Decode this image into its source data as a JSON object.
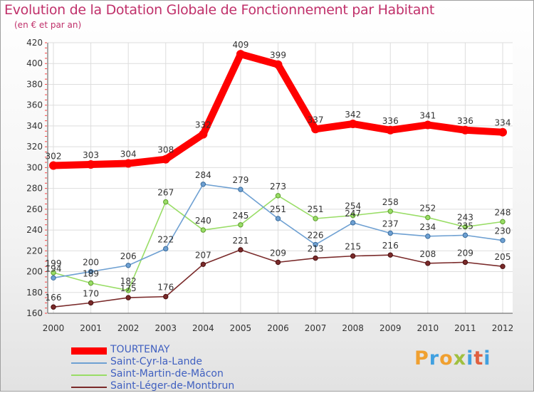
{
  "chart_data": {
    "type": "line",
    "title": "Evolution de la Dotation Globale de Fonctionnement par Habitant",
    "subtitle": "(en € et par an)",
    "x": [
      2000,
      2001,
      2002,
      2003,
      2004,
      2005,
      2006,
      2007,
      2008,
      2009,
      2010,
      2011,
      2012
    ],
    "ylim": [
      160,
      420
    ],
    "yticks": [
      160,
      180,
      200,
      220,
      240,
      260,
      280,
      300,
      320,
      340,
      360,
      380,
      400,
      420
    ],
    "grid": true,
    "series": [
      {
        "name": "TOURTENAY",
        "color": "#ff0000",
        "values": [
          302,
          303,
          304,
          308,
          332,
          409,
          399,
          337,
          342,
          336,
          341,
          336,
          334
        ]
      },
      {
        "name": "Saint-Cyr-la-Lande",
        "color": "#6ea0d2",
        "values": [
          194,
          200,
          206,
          222,
          284,
          279,
          251,
          226,
          247,
          237,
          234,
          235,
          230
        ]
      },
      {
        "name": "Saint-Martin-de-Mâcon",
        "color": "#99dd66",
        "values": [
          199,
          189,
          182,
          267,
          240,
          245,
          273,
          251,
          254,
          258,
          252,
          243,
          248
        ]
      },
      {
        "name": "Saint-Léger-de-Montbrun",
        "color": "#7a2a2a",
        "values": [
          166,
          170,
          175,
          176,
          207,
          221,
          209,
          213,
          215,
          216,
          208,
          209,
          205
        ]
      }
    ]
  },
  "brand": {
    "letters": [
      "P",
      "r",
      "o",
      "x",
      "i",
      "t",
      "i"
    ],
    "colors": [
      "#f0a030",
      "#40a0e0",
      "#f0a030",
      "#a0c040",
      "#40a0e0",
      "#e06040",
      "#40a0e0"
    ]
  }
}
